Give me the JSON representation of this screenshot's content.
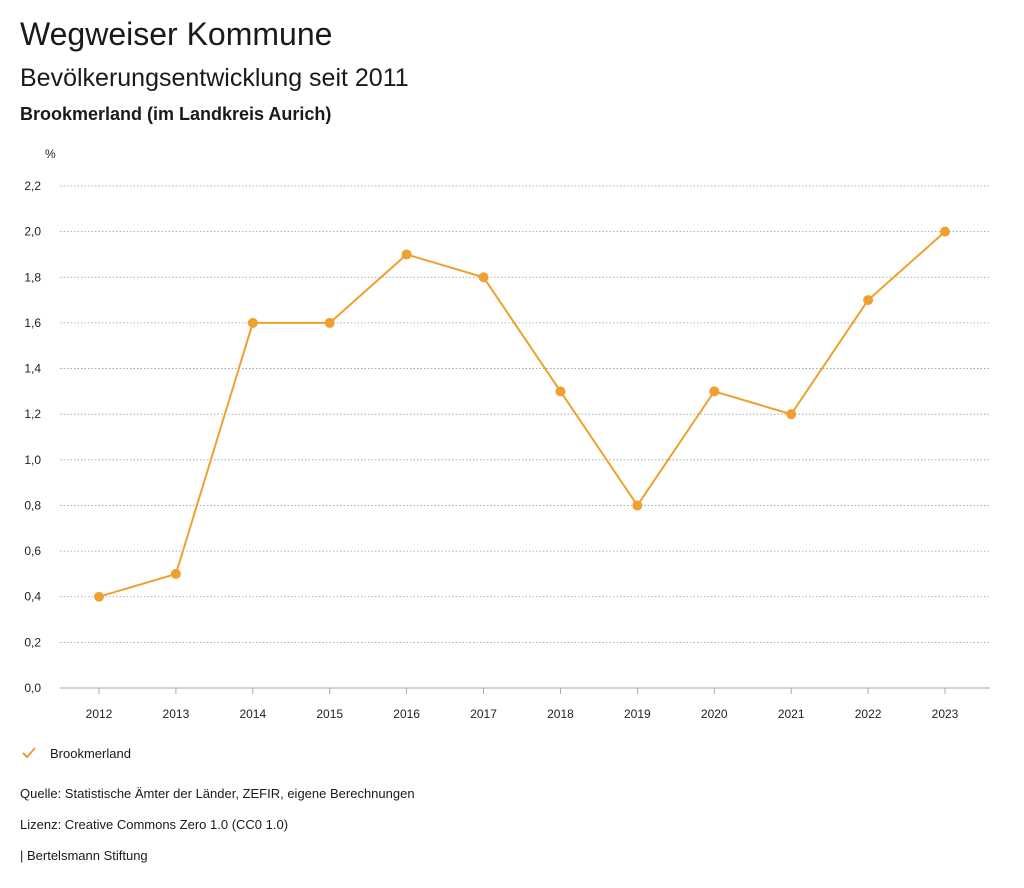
{
  "header": {
    "title": "Wegweiser Kommune",
    "subtitle": "Bevölkerungsentwicklung seit 2011",
    "region": "Brookmerland (im Landkreis Aurich)"
  },
  "chart_data": {
    "type": "line",
    "unit_label": "%",
    "x": [
      "2012",
      "2013",
      "2014",
      "2015",
      "2016",
      "2017",
      "2018",
      "2019",
      "2020",
      "2021",
      "2022",
      "2023"
    ],
    "series": [
      {
        "name": "Brookmerland",
        "color": "#f0a030",
        "values": [
          0.4,
          0.5,
          1.6,
          1.6,
          1.9,
          1.8,
          1.3,
          0.8,
          1.3,
          1.2,
          1.7,
          2.0
        ]
      }
    ],
    "ylim": [
      0,
      2.2
    ],
    "y_ticks": [
      "0,0",
      "0,2",
      "0,4",
      "0,6",
      "0,8",
      "1,0",
      "1,2",
      "1,4",
      "1,6",
      "1,8",
      "2,0",
      "2,2"
    ],
    "grid": true,
    "legend_position": "bottom-left"
  },
  "legend": {
    "label": "Brookmerland",
    "icon": "check-icon"
  },
  "footer": {
    "source": "Quelle: Statistische Ämter der Länder, ZEFIR, eigene Berechnungen",
    "license": "Lizenz: Creative Commons Zero 1.0 (CC0 1.0)",
    "publisher": "| Bertelsmann Stiftung"
  }
}
